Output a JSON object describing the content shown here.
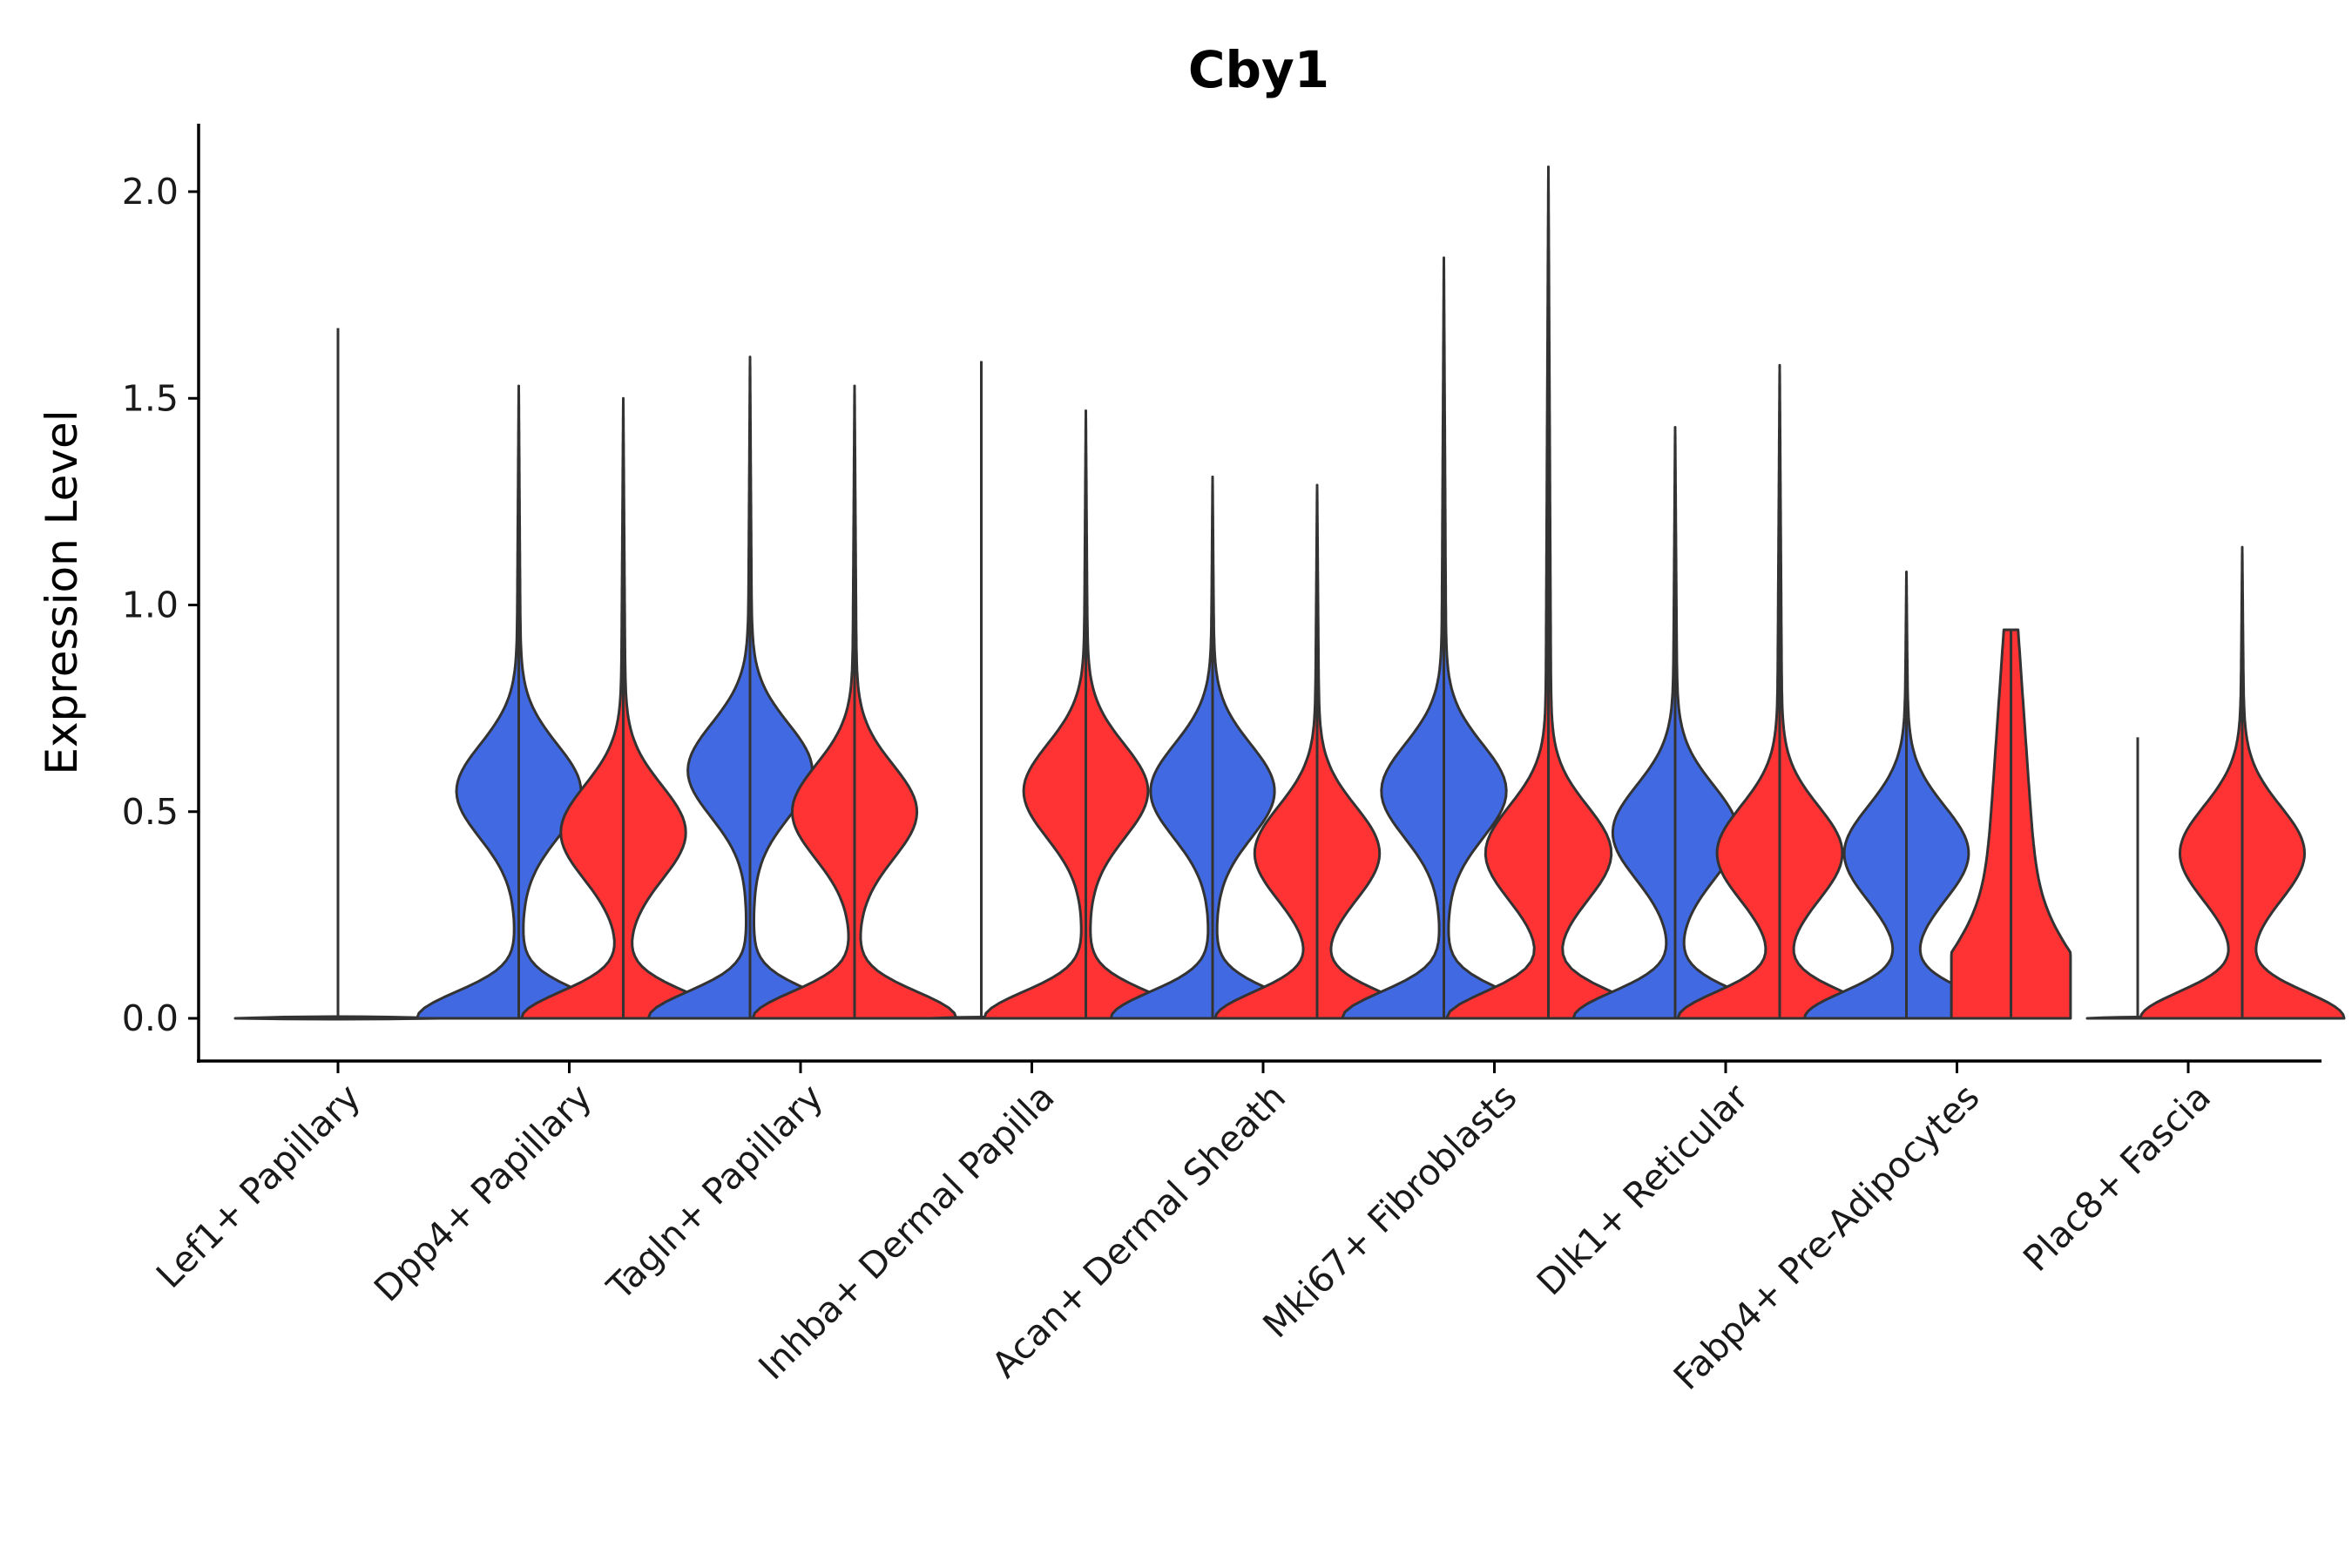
{
  "chart_data": {
    "type": "violin",
    "title": "Cby1",
    "xlabel": "",
    "ylabel": "Expression Level",
    "ylim": [
      -0.1,
      2.15
    ],
    "yticks": [
      "0.0",
      "0.5",
      "1.0",
      "1.5",
      "2.0"
    ],
    "split_colors": {
      "left": "#4169E1",
      "right": "#FF3333"
    },
    "categories": [
      "Lef1+ Papillary",
      "Dpp4+ Papillary",
      "Tagln+ Papillary",
      "Inhba+ Dermal Papilla",
      "Acan+ Dermal Sheath",
      "Mki67+ Fibroblasts",
      "Dlk1+ Reticular",
      "Fabp4+ Pre-Adipocytes",
      "Plac8+ Fascia"
    ],
    "series": [
      {
        "name": "left",
        "max": [
          1.67,
          1.53,
          1.6,
          1.59,
          1.31,
          1.84,
          1.43,
          1.08,
          0.68
        ],
        "peak_value": [
          0.0,
          0.55,
          0.6,
          0.0,
          0.55,
          0.55,
          0.45,
          0.4,
          0.0
        ]
      },
      {
        "name": "right",
        "max": [
          null,
          1.5,
          1.53,
          1.47,
          1.29,
          2.06,
          1.58,
          0.94,
          1.14
        ],
        "peak_value": [
          null,
          0.45,
          0.5,
          0.55,
          0.4,
          0.4,
          0.4,
          0.0,
          0.4
        ]
      }
    ]
  }
}
